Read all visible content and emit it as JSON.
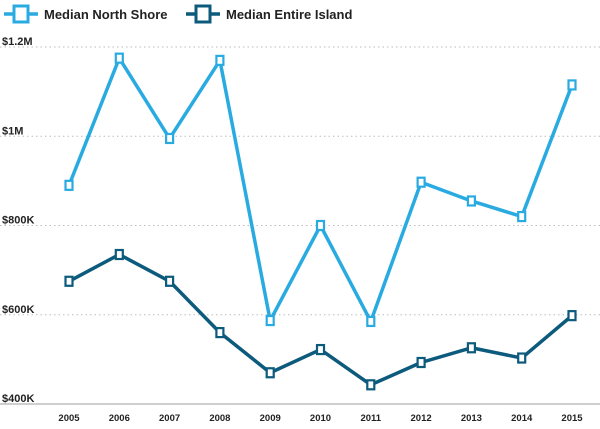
{
  "chart_data": {
    "type": "line",
    "x": [
      "2005",
      "2006",
      "2007",
      "2008",
      "2009",
      "2010",
      "2011",
      "2012",
      "2013",
      "2014",
      "2015"
    ],
    "series": [
      {
        "name": "Median North Shore",
        "color": "#29abe2",
        "values": [
          890000,
          1175000,
          995000,
          1170000,
          587000,
          800000,
          585000,
          897000,
          855000,
          820000,
          1115000
        ]
      },
      {
        "name": "Median Entire Island",
        "color": "#0c5a7c",
        "values": [
          675000,
          735000,
          675000,
          560000,
          470000,
          522000,
          443000,
          493000,
          526000,
          503000,
          598000
        ]
      }
    ],
    "ylim": [
      400000,
      1200000
    ],
    "y_ticks": [
      {
        "value": 400000,
        "label": "$400K"
      },
      {
        "value": 600000,
        "label": "$600K"
      },
      {
        "value": 800000,
        "label": "$800K"
      },
      {
        "value": 1000000,
        "label": "$1M"
      },
      {
        "value": 1200000,
        "label": "$1.2M"
      }
    ],
    "grid": "horizontal-dotted",
    "legend_position": "top-left"
  }
}
